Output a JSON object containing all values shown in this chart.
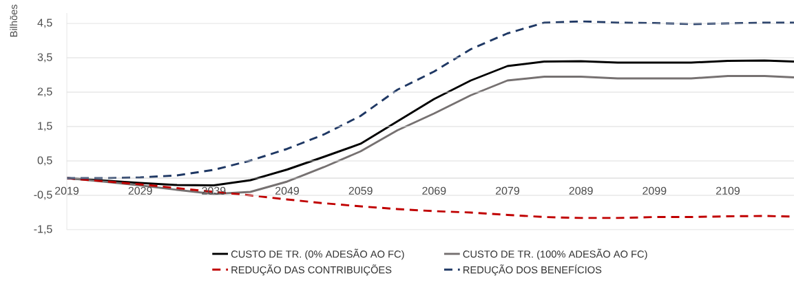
{
  "chart_data": {
    "type": "line",
    "ylabel": "Bilhões",
    "x": [
      2019,
      2024,
      2029,
      2034,
      2039,
      2044,
      2049,
      2054,
      2059,
      2064,
      2069,
      2074,
      2079,
      2084,
      2089,
      2094,
      2099,
      2104,
      2109,
      2114,
      2118
    ],
    "series": [
      {
        "name": "CUSTO DE TR. (0% ADESÃO AO FC)",
        "color": "#000000",
        "line_style": "solid",
        "values": [
          0,
          -0.07,
          -0.14,
          -0.2,
          -0.21,
          -0.06,
          0.25,
          0.62,
          1.0,
          1.65,
          2.3,
          2.84,
          3.26,
          3.39,
          3.4,
          3.36,
          3.36,
          3.36,
          3.41,
          3.42,
          3.39
        ]
      },
      {
        "name": "CUSTO DE TR. (100% ADESÃO AO FC)",
        "color": "#767171",
        "line_style": "solid",
        "values": [
          0,
          -0.1,
          -0.21,
          -0.34,
          -0.46,
          -0.4,
          -0.1,
          0.32,
          0.78,
          1.39,
          1.88,
          2.41,
          2.84,
          2.95,
          2.95,
          2.9,
          2.9,
          2.9,
          2.97,
          2.97,
          2.93
        ]
      },
      {
        "name": "REDUÇÃO DAS CONTRIBUIÇÕES",
        "color": "#c00000",
        "line_style": "dashed",
        "values": [
          0,
          -0.09,
          -0.18,
          -0.29,
          -0.4,
          -0.5,
          -0.62,
          -0.73,
          -0.82,
          -0.9,
          -0.96,
          -1.0,
          -1.07,
          -1.13,
          -1.16,
          -1.16,
          -1.13,
          -1.13,
          -1.11,
          -1.1,
          -1.12
        ]
      },
      {
        "name": "REDUÇÃO DOS BENEFÍCIOS",
        "color": "#1f3864",
        "line_style": "dashed",
        "values": [
          0,
          0.0,
          0.02,
          0.08,
          0.24,
          0.51,
          0.85,
          1.27,
          1.81,
          2.57,
          3.1,
          3.75,
          4.21,
          4.52,
          4.56,
          4.52,
          4.51,
          4.48,
          4.5,
          4.52,
          4.52
        ]
      }
    ],
    "xlim": [
      2019,
      2118
    ],
    "ylim": [
      -1.5,
      4.8
    ],
    "xticks": [
      2019,
      2029,
      2039,
      2049,
      2059,
      2069,
      2079,
      2089,
      2099,
      2109
    ],
    "yticks": [
      {
        "value": -1.5,
        "label": "-1,5"
      },
      {
        "value": -0.5,
        "label": "-0,5"
      },
      {
        "value": 0.5,
        "label": "0,5"
      },
      {
        "value": 1.5,
        "label": "1,5"
      },
      {
        "value": 2.5,
        "label": "2,5"
      },
      {
        "value": 3.5,
        "label": "3,5"
      },
      {
        "value": 4.5,
        "label": "4,5"
      }
    ],
    "grid": "y",
    "legend": "bottom",
    "marker": "none"
  }
}
